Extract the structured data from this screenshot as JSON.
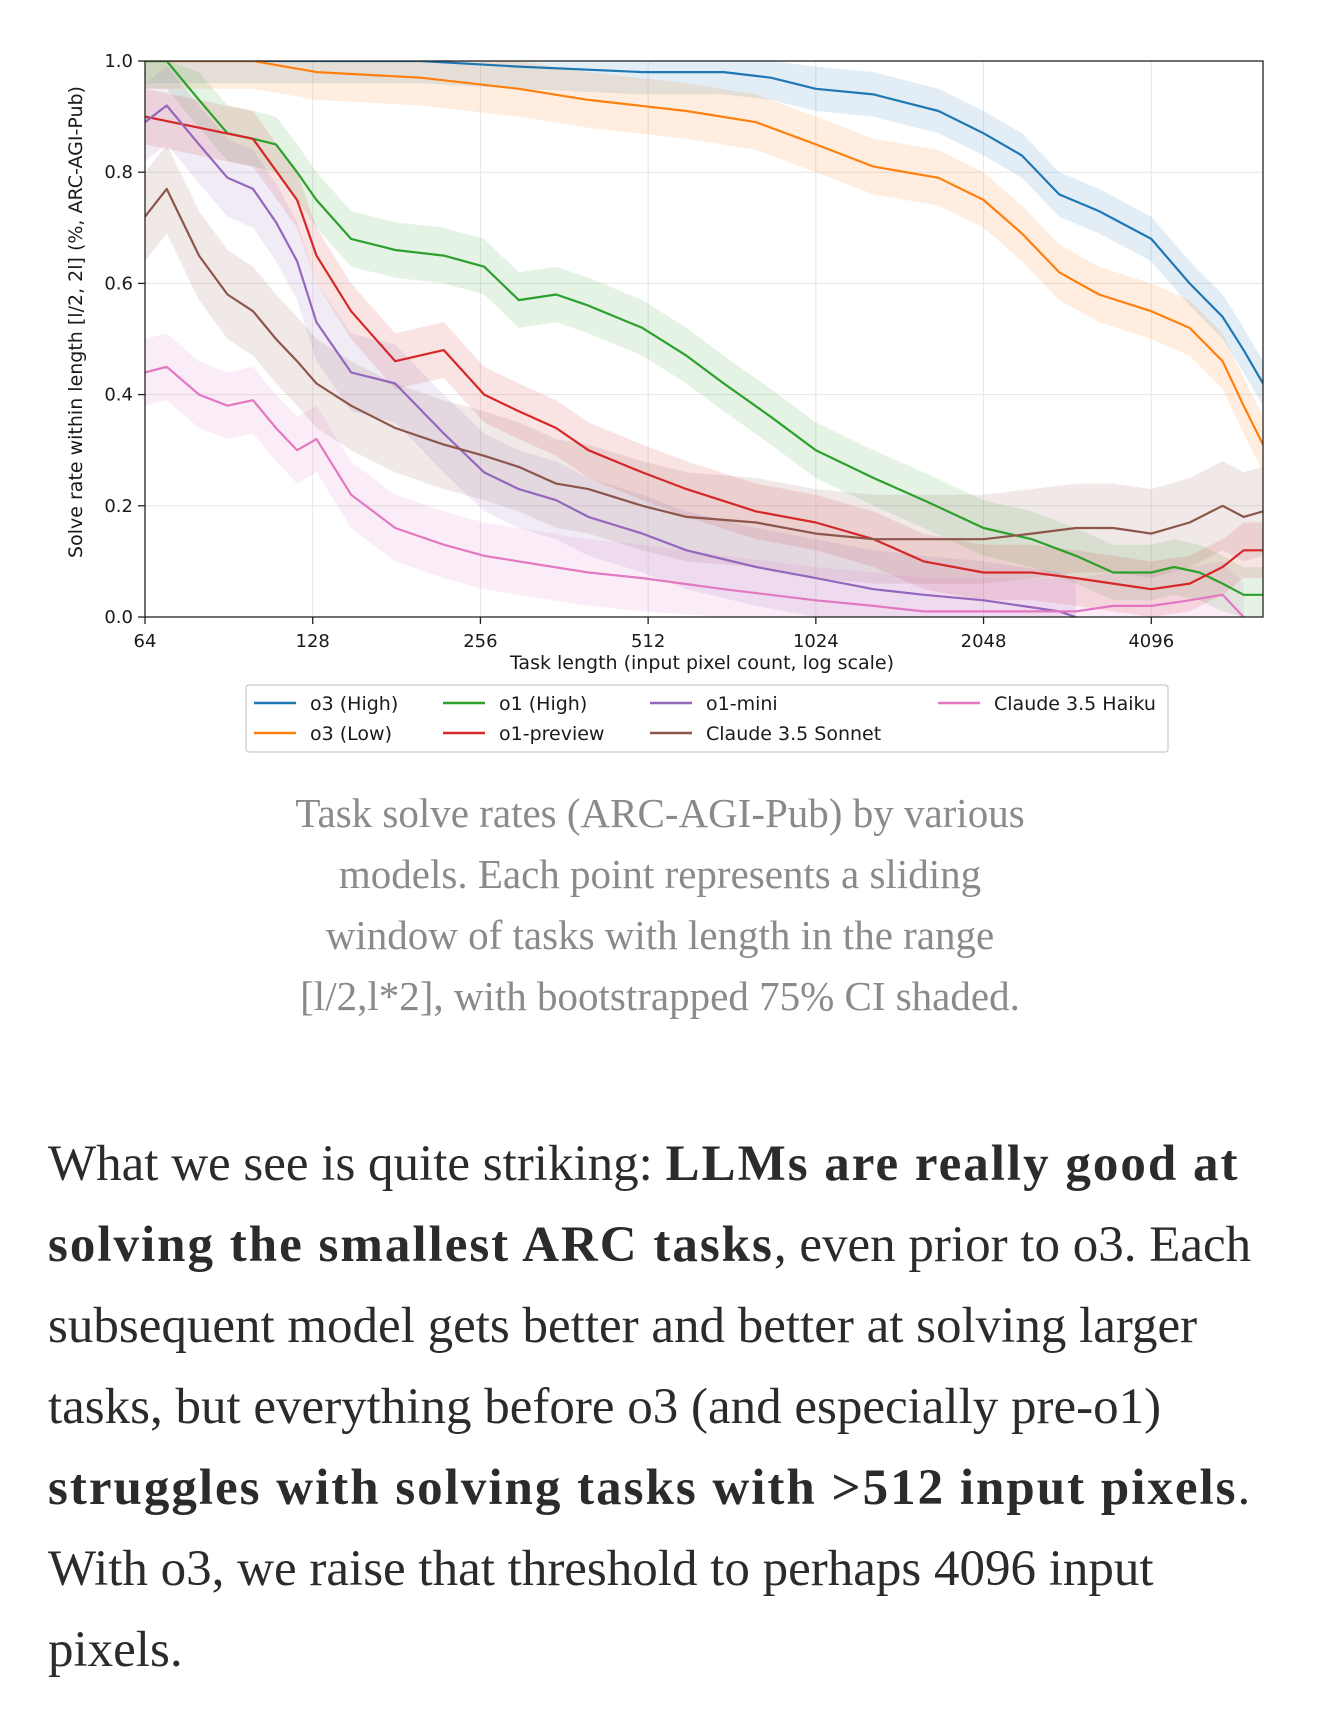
{
  "chart_data": {
    "type": "line",
    "ylabel": "Solve rate within length [l/2, 2l] (%, ARC-AGI-Pub)",
    "xlabel": "Task length (input pixel count, log scale)",
    "x_scale": "log2",
    "xlim": [
      64,
      6500
    ],
    "ylim": [
      0.0,
      1.0
    ],
    "x_ticks": [
      {
        "value": 64,
        "label": "64"
      },
      {
        "value": 128,
        "label": "128"
      },
      {
        "value": 256,
        "label": "256"
      },
      {
        "value": 512,
        "label": "512"
      },
      {
        "value": 1024,
        "label": "1024"
      },
      {
        "value": 2048,
        "label": "2048"
      },
      {
        "value": 4096,
        "label": "4096"
      }
    ],
    "y_ticks": [
      {
        "value": 0.0,
        "label": "0.0"
      },
      {
        "value": 0.2,
        "label": "0.2"
      },
      {
        "value": 0.4,
        "label": "0.4"
      },
      {
        "value": 0.6,
        "label": "0.6"
      },
      {
        "value": 0.8,
        "label": "0.8"
      },
      {
        "value": 1.0,
        "label": "1.0"
      }
    ],
    "grid": true,
    "legend_placement": "below",
    "series": [
      {
        "name": "o3 (High)",
        "color": "#1f77b4",
        "ci": 0.04,
        "x": [
          64,
          100,
          200,
          300,
          500,
          700,
          850,
          1024,
          1300,
          1700,
          2048,
          2400,
          2800,
          3300,
          4096,
          4800,
          5500,
          6000,
          6500
        ],
        "y": [
          1.0,
          1.0,
          1.0,
          0.99,
          0.98,
          0.98,
          0.97,
          0.95,
          0.94,
          0.91,
          0.87,
          0.83,
          0.76,
          0.73,
          0.68,
          0.6,
          0.54,
          0.48,
          0.42
        ]
      },
      {
        "name": "o3 (Low)",
        "color": "#ff7f0e",
        "ci": 0.05,
        "x": [
          64,
          100,
          130,
          200,
          300,
          400,
          600,
          800,
          1024,
          1300,
          1700,
          2048,
          2400,
          2800,
          3300,
          4096,
          4800,
          5500,
          6000,
          6500
        ],
        "y": [
          1.0,
          1.0,
          0.98,
          0.97,
          0.95,
          0.93,
          0.91,
          0.89,
          0.85,
          0.81,
          0.79,
          0.75,
          0.69,
          0.62,
          0.58,
          0.55,
          0.52,
          0.46,
          0.38,
          0.31
        ]
      },
      {
        "name": "o1 (High)",
        "color": "#2ca02c",
        "ci": 0.05,
        "x": [
          64,
          70,
          80,
          90,
          100,
          110,
          120,
          130,
          150,
          180,
          220,
          260,
          300,
          350,
          400,
          500,
          600,
          700,
          850,
          1024,
          1300,
          1600,
          2048,
          2500,
          3000,
          3500,
          4096,
          4500,
          5000,
          5500,
          6000,
          6500
        ],
        "y": [
          1.0,
          1.0,
          0.93,
          0.87,
          0.86,
          0.85,
          0.8,
          0.75,
          0.68,
          0.66,
          0.65,
          0.63,
          0.57,
          0.58,
          0.56,
          0.52,
          0.47,
          0.42,
          0.36,
          0.3,
          0.25,
          0.21,
          0.16,
          0.14,
          0.11,
          0.08,
          0.08,
          0.09,
          0.08,
          0.06,
          0.04,
          0.04
        ]
      },
      {
        "name": "o1-preview",
        "color": "#d62728",
        "ci": 0.05,
        "x": [
          64,
          80,
          100,
          120,
          130,
          150,
          180,
          220,
          260,
          300,
          350,
          400,
          500,
          600,
          800,
          1024,
          1300,
          1600,
          2048,
          2500,
          3000,
          3500,
          4096,
          4800,
          5500,
          6000,
          6500
        ],
        "y": [
          0.9,
          0.88,
          0.86,
          0.75,
          0.65,
          0.55,
          0.46,
          0.48,
          0.4,
          0.37,
          0.34,
          0.3,
          0.26,
          0.23,
          0.19,
          0.17,
          0.14,
          0.1,
          0.08,
          0.08,
          0.07,
          0.06,
          0.05,
          0.06,
          0.09,
          0.12,
          0.12
        ]
      },
      {
        "name": "o1-mini",
        "color": "#9467bd",
        "ci": 0.07,
        "x": [
          64,
          70,
          80,
          90,
          100,
          110,
          120,
          130,
          150,
          180,
          220,
          260,
          300,
          350,
          400,
          500,
          600,
          800,
          1024,
          1300,
          1600,
          2048,
          2400,
          2800,
          3000
        ],
        "y": [
          0.89,
          0.92,
          0.85,
          0.79,
          0.77,
          0.71,
          0.64,
          0.53,
          0.44,
          0.42,
          0.33,
          0.26,
          0.23,
          0.21,
          0.18,
          0.15,
          0.12,
          0.09,
          0.07,
          0.05,
          0.04,
          0.03,
          0.02,
          0.01,
          0.0
        ]
      },
      {
        "name": "Claude 3.5 Sonnet",
        "color": "#8c564b",
        "ci": 0.08,
        "x": [
          64,
          70,
          80,
          90,
          100,
          110,
          120,
          130,
          150,
          180,
          220,
          260,
          300,
          350,
          400,
          500,
          600,
          800,
          1024,
          1300,
          1600,
          2048,
          2500,
          3000,
          3500,
          4096,
          4800,
          5500,
          6000,
          6500
        ],
        "y": [
          0.72,
          0.77,
          0.65,
          0.58,
          0.55,
          0.5,
          0.46,
          0.42,
          0.38,
          0.34,
          0.31,
          0.29,
          0.27,
          0.24,
          0.23,
          0.2,
          0.18,
          0.17,
          0.15,
          0.14,
          0.14,
          0.14,
          0.15,
          0.16,
          0.16,
          0.15,
          0.17,
          0.2,
          0.18,
          0.19
        ]
      },
      {
        "name": "Claude 3.5 Haiku",
        "color": "#e377c2",
        "ci": 0.06,
        "x": [
          64,
          70,
          80,
          90,
          100,
          110,
          120,
          130,
          150,
          180,
          220,
          260,
          300,
          400,
          500,
          700,
          1024,
          1300,
          1600,
          2048,
          2500,
          3000,
          3500,
          4096,
          4800,
          5500,
          6000
        ],
        "y": [
          0.44,
          0.45,
          0.4,
          0.38,
          0.39,
          0.34,
          0.3,
          0.32,
          0.22,
          0.16,
          0.13,
          0.11,
          0.1,
          0.08,
          0.07,
          0.05,
          0.03,
          0.02,
          0.01,
          0.01,
          0.01,
          0.01,
          0.02,
          0.02,
          0.03,
          0.04,
          0.0
        ]
      }
    ],
    "caption": "Task solve rates (ARC-AGI-Pub) by various models. Each point represents a sliding window of tasks with length in the range [l/2,l*2], with bootstrapped 75% CI shaded."
  },
  "caption_lines": [
    "Task solve rates (ARC-AGI-Pub) by various",
    "models. Each point represents a sliding",
    "window of tasks with length in the range",
    "[l/2,l*2], with bootstrapped 75% CI shaded."
  ],
  "body": {
    "p1": "What we see is quite striking: ",
    "b1": "LLMs are really good at solving the smallest ARC tasks",
    "p2": ", even prior to o3. Each subsequent model gets better and better at solving larger tasks, but everything before o3 (and especially pre-o1) ",
    "b2": "struggles with solving tasks with >512 input pixels",
    "p3": ". With o3, we raise that threshold to perhaps 4096 input pixels."
  }
}
